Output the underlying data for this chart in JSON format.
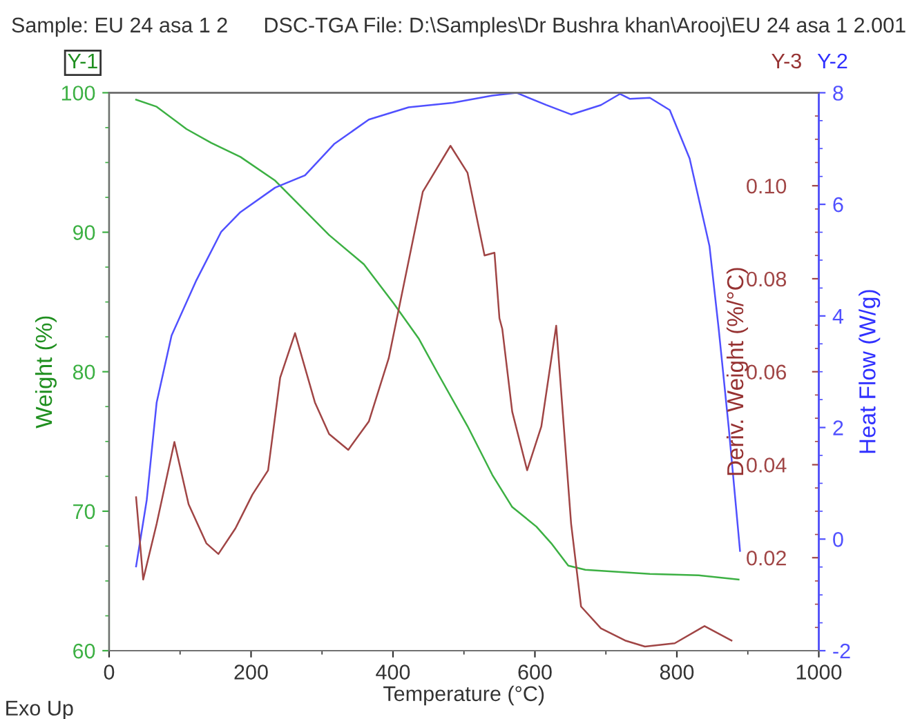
{
  "chart_data": {
    "type": "line",
    "title": "Sample: EU 24 asa 1 2",
    "subtitle": "DSC-TGA File: D:\\Samples\\Dr Bushra khan\\Arooj\\EU 24 asa 1 2.001",
    "xlabel": "Temperature (°C)",
    "ylabel": "Weight (%)",
    "y2label": "Heat Flow (W/g)",
    "y3label": "Deriv. Weight (%/°C)",
    "annotations": [
      "Y-1",
      "Y-3",
      "Y-2",
      "Exo Up"
    ],
    "xlim": [
      0,
      1000
    ],
    "xticks": [
      0,
      200,
      400,
      600,
      800,
      1000
    ],
    "ylim": [
      60,
      100
    ],
    "yticks": [
      60,
      70,
      80,
      90,
      100
    ],
    "y2lim": [
      -2,
      8
    ],
    "y2ticks": [
      {
        "value": -2,
        "label": "-2"
      },
      0,
      2,
      4,
      6,
      8
    ],
    "y3lim": [
      0,
      0.12
    ],
    "y3ticks": [
      0.02,
      0.04,
      0.06,
      0.08,
      {
        "value": 0.1,
        "label": "0.10"
      }
    ],
    "grid": false,
    "legend": false,
    "series": [
      {
        "color": "#3cb043",
        "axis": "y",
        "x": [
          38,
          67,
          109,
          144,
          185,
          234,
          269,
          310,
          359,
          401,
          436,
          463,
          505,
          540,
          568,
          602,
          623,
          647,
          671,
          762,
          831,
          887
        ],
        "values": [
          99.5,
          99.0,
          97.4,
          96.4,
          95.4,
          93.7,
          91.9,
          89.8,
          87.7,
          84.9,
          82.4,
          79.9,
          76.1,
          72.6,
          70.3,
          68.9,
          67.7,
          66.1,
          65.8,
          65.5,
          65.4,
          65.1
        ]
      },
      {
        "color": "#5050ff",
        "axis": "y2",
        "x": [
          38,
          53,
          67,
          88,
          123,
          158,
          185,
          234,
          276,
          317,
          366,
          422,
          484,
          540,
          574,
          616,
          651,
          693,
          720,
          734,
          762,
          790,
          818,
          846,
          859,
          873,
          889
        ],
        "values": [
          -0.49,
          0.7,
          2.45,
          3.65,
          4.64,
          5.51,
          5.86,
          6.3,
          6.52,
          7.08,
          7.52,
          7.74,
          7.82,
          7.95,
          8.0,
          7.78,
          7.61,
          7.78,
          7.98,
          7.89,
          7.91,
          7.69,
          6.82,
          5.25,
          3.76,
          2.01,
          -0.21
        ]
      },
      {
        "color": "#a04545",
        "axis": "y3",
        "x": [
          38,
          48,
          67,
          92,
          112,
          137,
          154,
          178,
          202,
          224,
          241,
          262,
          290,
          310,
          337,
          366,
          394,
          442,
          481,
          505,
          529,
          543,
          550,
          554,
          568,
          589,
          609,
          630,
          651,
          665,
          693,
          727,
          755,
          797,
          839,
          877
        ],
        "values": [
          0.033,
          0.0153,
          0.0273,
          0.0449,
          0.0315,
          0.0231,
          0.0208,
          0.0263,
          0.0336,
          0.0388,
          0.0587,
          0.0683,
          0.0534,
          0.0466,
          0.0432,
          0.0493,
          0.0629,
          0.0987,
          0.1086,
          0.1028,
          0.085,
          0.0856,
          0.0715,
          0.0692,
          0.0514,
          0.0388,
          0.0482,
          0.0699,
          0.0273,
          0.0095,
          0.0048,
          0.0022,
          0.0009,
          0.0016,
          0.0053,
          0.0022
        ]
      }
    ]
  }
}
